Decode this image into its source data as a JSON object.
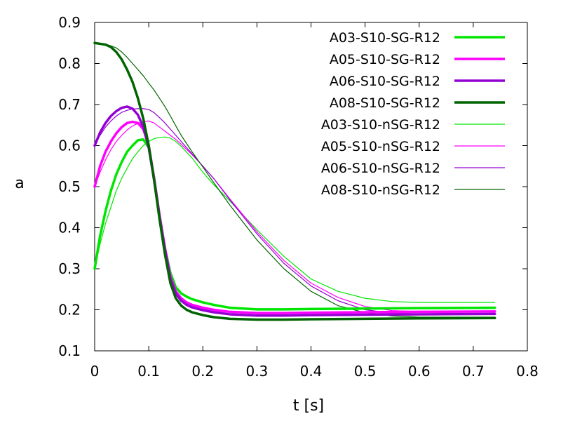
{
  "chart_data": {
    "type": "line",
    "title": "",
    "xlabel": "t [s]",
    "ylabel": "a",
    "xlim": [
      0,
      0.8
    ],
    "ylim": [
      0.1,
      0.9
    ],
    "x_ticks": [
      "0",
      "0.1",
      "0.2",
      "0.3",
      "0.4",
      "0.5",
      "0.6",
      "0.7",
      "0.8"
    ],
    "y_ticks": [
      "0.1",
      "0.2",
      "0.3",
      "0.4",
      "0.5",
      "0.6",
      "0.7",
      "0.8",
      "0.9"
    ],
    "grid": false,
    "legend_position": "top-right",
    "series": [
      {
        "name": "A03-S10-SG-R12",
        "color": "#00e600",
        "thick": true,
        "points": [
          [
            0,
            0.3
          ],
          [
            0.01,
            0.38
          ],
          [
            0.02,
            0.44
          ],
          [
            0.03,
            0.49
          ],
          [
            0.04,
            0.53
          ],
          [
            0.05,
            0.56
          ],
          [
            0.06,
            0.585
          ],
          [
            0.07,
            0.6
          ],
          [
            0.08,
            0.613
          ],
          [
            0.09,
            0.615
          ],
          [
            0.1,
            0.595
          ],
          [
            0.11,
            0.52
          ],
          [
            0.12,
            0.43
          ],
          [
            0.13,
            0.35
          ],
          [
            0.14,
            0.29
          ],
          [
            0.15,
            0.255
          ],
          [
            0.16,
            0.24
          ],
          [
            0.17,
            0.232
          ],
          [
            0.18,
            0.226
          ],
          [
            0.2,
            0.218
          ],
          [
            0.22,
            0.212
          ],
          [
            0.25,
            0.205
          ],
          [
            0.3,
            0.201
          ],
          [
            0.35,
            0.201
          ],
          [
            0.4,
            0.202
          ],
          [
            0.5,
            0.203
          ],
          [
            0.6,
            0.204
          ],
          [
            0.74,
            0.205
          ]
        ]
      },
      {
        "name": "A05-S10-SG-R12",
        "color": "#ff00ff",
        "thick": true,
        "points": [
          [
            0,
            0.5
          ],
          [
            0.01,
            0.55
          ],
          [
            0.02,
            0.585
          ],
          [
            0.03,
            0.61
          ],
          [
            0.04,
            0.63
          ],
          [
            0.05,
            0.645
          ],
          [
            0.06,
            0.655
          ],
          [
            0.07,
            0.658
          ],
          [
            0.08,
            0.655
          ],
          [
            0.09,
            0.64
          ],
          [
            0.1,
            0.6
          ],
          [
            0.11,
            0.52
          ],
          [
            0.12,
            0.43
          ],
          [
            0.13,
            0.35
          ],
          [
            0.14,
            0.28
          ],
          [
            0.15,
            0.245
          ],
          [
            0.16,
            0.228
          ],
          [
            0.17,
            0.218
          ],
          [
            0.18,
            0.212
          ],
          [
            0.2,
            0.205
          ],
          [
            0.22,
            0.2
          ],
          [
            0.25,
            0.195
          ],
          [
            0.3,
            0.192
          ],
          [
            0.35,
            0.192
          ],
          [
            0.4,
            0.193
          ],
          [
            0.5,
            0.194
          ],
          [
            0.6,
            0.195
          ],
          [
            0.74,
            0.196
          ]
        ]
      },
      {
        "name": "A06-S10-SG-R12",
        "color": "#9400d3",
        "thick": true,
        "points": [
          [
            0,
            0.6
          ],
          [
            0.01,
            0.632
          ],
          [
            0.02,
            0.655
          ],
          [
            0.03,
            0.672
          ],
          [
            0.04,
            0.684
          ],
          [
            0.05,
            0.692
          ],
          [
            0.06,
            0.695
          ],
          [
            0.07,
            0.69
          ],
          [
            0.08,
            0.675
          ],
          [
            0.09,
            0.645
          ],
          [
            0.1,
            0.595
          ],
          [
            0.11,
            0.515
          ],
          [
            0.12,
            0.425
          ],
          [
            0.13,
            0.345
          ],
          [
            0.14,
            0.275
          ],
          [
            0.15,
            0.24
          ],
          [
            0.16,
            0.222
          ],
          [
            0.17,
            0.212
          ],
          [
            0.18,
            0.206
          ],
          [
            0.2,
            0.199
          ],
          [
            0.22,
            0.194
          ],
          [
            0.25,
            0.189
          ],
          [
            0.3,
            0.186
          ],
          [
            0.35,
            0.186
          ],
          [
            0.4,
            0.187
          ],
          [
            0.5,
            0.188
          ],
          [
            0.6,
            0.189
          ],
          [
            0.74,
            0.19
          ]
        ]
      },
      {
        "name": "A08-S10-SG-R12",
        "color": "#006400",
        "thick": true,
        "points": [
          [
            0,
            0.85
          ],
          [
            0.01,
            0.848
          ],
          [
            0.02,
            0.846
          ],
          [
            0.03,
            0.84
          ],
          [
            0.04,
            0.828
          ],
          [
            0.05,
            0.81
          ],
          [
            0.06,
            0.785
          ],
          [
            0.07,
            0.755
          ],
          [
            0.08,
            0.715
          ],
          [
            0.09,
            0.665
          ],
          [
            0.1,
            0.6
          ],
          [
            0.11,
            0.515
          ],
          [
            0.12,
            0.42
          ],
          [
            0.13,
            0.335
          ],
          [
            0.14,
            0.265
          ],
          [
            0.15,
            0.228
          ],
          [
            0.16,
            0.21
          ],
          [
            0.17,
            0.2
          ],
          [
            0.18,
            0.194
          ],
          [
            0.2,
            0.187
          ],
          [
            0.22,
            0.182
          ],
          [
            0.25,
            0.178
          ],
          [
            0.3,
            0.176
          ],
          [
            0.35,
            0.176
          ],
          [
            0.4,
            0.177
          ],
          [
            0.5,
            0.178
          ],
          [
            0.6,
            0.179
          ],
          [
            0.74,
            0.18
          ]
        ]
      },
      {
        "name": "A03-S10-nSG-R12",
        "color": "#00e600",
        "thick": false,
        "points": [
          [
            0,
            0.3
          ],
          [
            0.01,
            0.36
          ],
          [
            0.02,
            0.41
          ],
          [
            0.03,
            0.45
          ],
          [
            0.04,
            0.49
          ],
          [
            0.05,
            0.52
          ],
          [
            0.06,
            0.545
          ],
          [
            0.07,
            0.568
          ],
          [
            0.08,
            0.585
          ],
          [
            0.09,
            0.6
          ],
          [
            0.1,
            0.61
          ],
          [
            0.11,
            0.617
          ],
          [
            0.12,
            0.62
          ],
          [
            0.13,
            0.621
          ],
          [
            0.14,
            0.618
          ],
          [
            0.15,
            0.61
          ],
          [
            0.16,
            0.598
          ],
          [
            0.18,
            0.57
          ],
          [
            0.2,
            0.535
          ],
          [
            0.22,
            0.505
          ],
          [
            0.25,
            0.465
          ],
          [
            0.3,
            0.395
          ],
          [
            0.35,
            0.33
          ],
          [
            0.4,
            0.275
          ],
          [
            0.45,
            0.245
          ],
          [
            0.5,
            0.228
          ],
          [
            0.55,
            0.22
          ],
          [
            0.6,
            0.218
          ],
          [
            0.74,
            0.218
          ]
        ]
      },
      {
        "name": "A05-S10-nSG-R12",
        "color": "#ff00ff",
        "thick": false,
        "points": [
          [
            0,
            0.5
          ],
          [
            0.01,
            0.535
          ],
          [
            0.02,
            0.565
          ],
          [
            0.03,
            0.59
          ],
          [
            0.04,
            0.61
          ],
          [
            0.05,
            0.625
          ],
          [
            0.06,
            0.638
          ],
          [
            0.07,
            0.648
          ],
          [
            0.08,
            0.654
          ],
          [
            0.09,
            0.658
          ],
          [
            0.1,
            0.66
          ],
          [
            0.11,
            0.655
          ],
          [
            0.12,
            0.645
          ],
          [
            0.13,
            0.635
          ],
          [
            0.14,
            0.625
          ],
          [
            0.15,
            0.615
          ],
          [
            0.16,
            0.603
          ],
          [
            0.18,
            0.578
          ],
          [
            0.2,
            0.55
          ],
          [
            0.22,
            0.52
          ],
          [
            0.25,
            0.47
          ],
          [
            0.3,
            0.39
          ],
          [
            0.35,
            0.32
          ],
          [
            0.4,
            0.265
          ],
          [
            0.45,
            0.23
          ],
          [
            0.5,
            0.208
          ],
          [
            0.55,
            0.198
          ],
          [
            0.6,
            0.196
          ],
          [
            0.74,
            0.196
          ]
        ]
      },
      {
        "name": "A06-S10-nSG-R12",
        "color": "#9400d3",
        "thick": false,
        "points": [
          [
            0,
            0.6
          ],
          [
            0.01,
            0.625
          ],
          [
            0.02,
            0.645
          ],
          [
            0.03,
            0.66
          ],
          [
            0.04,
            0.672
          ],
          [
            0.05,
            0.681
          ],
          [
            0.06,
            0.686
          ],
          [
            0.07,
            0.689
          ],
          [
            0.08,
            0.69
          ],
          [
            0.09,
            0.69
          ],
          [
            0.1,
            0.688
          ],
          [
            0.11,
            0.68
          ],
          [
            0.12,
            0.668
          ],
          [
            0.13,
            0.655
          ],
          [
            0.14,
            0.64
          ],
          [
            0.15,
            0.625
          ],
          [
            0.16,
            0.61
          ],
          [
            0.18,
            0.58
          ],
          [
            0.2,
            0.55
          ],
          [
            0.22,
            0.52
          ],
          [
            0.25,
            0.468
          ],
          [
            0.3,
            0.385
          ],
          [
            0.35,
            0.313
          ],
          [
            0.4,
            0.258
          ],
          [
            0.45,
            0.222
          ],
          [
            0.5,
            0.2
          ],
          [
            0.55,
            0.192
          ],
          [
            0.6,
            0.19
          ],
          [
            0.74,
            0.19
          ]
        ]
      },
      {
        "name": "A08-S10-nSG-R12",
        "color": "#006400",
        "thick": false,
        "points": [
          [
            0,
            0.85
          ],
          [
            0.01,
            0.849
          ],
          [
            0.02,
            0.847
          ],
          [
            0.03,
            0.843
          ],
          [
            0.04,
            0.838
          ],
          [
            0.05,
            0.828
          ],
          [
            0.06,
            0.815
          ],
          [
            0.07,
            0.8
          ],
          [
            0.08,
            0.785
          ],
          [
            0.09,
            0.77
          ],
          [
            0.1,
            0.752
          ],
          [
            0.11,
            0.735
          ],
          [
            0.12,
            0.715
          ],
          [
            0.13,
            0.695
          ],
          [
            0.14,
            0.672
          ],
          [
            0.15,
            0.648
          ],
          [
            0.16,
            0.625
          ],
          [
            0.18,
            0.585
          ],
          [
            0.2,
            0.548
          ],
          [
            0.22,
            0.51
          ],
          [
            0.25,
            0.455
          ],
          [
            0.3,
            0.37
          ],
          [
            0.35,
            0.3
          ],
          [
            0.4,
            0.245
          ],
          [
            0.45,
            0.21
          ],
          [
            0.5,
            0.193
          ],
          [
            0.55,
            0.185
          ],
          [
            0.6,
            0.182
          ],
          [
            0.74,
            0.182
          ]
        ]
      }
    ]
  }
}
